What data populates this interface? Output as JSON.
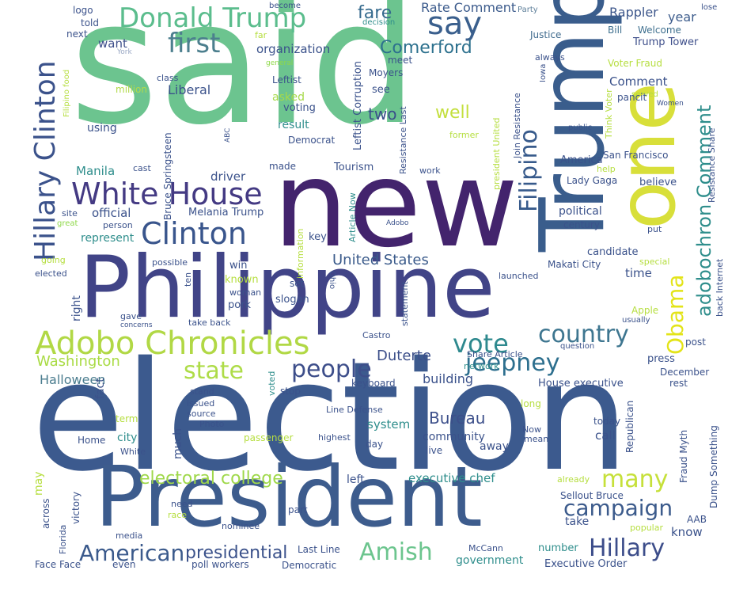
{
  "words": [
    {
      "id": "said",
      "text": "said",
      "color": "#6cc48f"
    },
    {
      "id": "election",
      "text": "election",
      "color": "#3c5a8e"
    },
    {
      "id": "new",
      "text": "new",
      "color": "#43246d"
    },
    {
      "id": "philippine",
      "text": "Philippine",
      "color": "#414487"
    },
    {
      "id": "president",
      "text": "President",
      "color": "#3d5c8d"
    },
    {
      "id": "trump",
      "text": "Trump",
      "color": "#3a5d8c"
    },
    {
      "id": "one",
      "text": "one",
      "color": "#d8df3a"
    },
    {
      "id": "donald-trump",
      "text": "Donald Trump",
      "color": "#5bbd8d"
    },
    {
      "id": "adobo-chronicles",
      "text": "Adobo Chronicles",
      "color": "#b1d845"
    },
    {
      "id": "white-house",
      "text": "White House",
      "color": "#443a83"
    },
    {
      "id": "clinton",
      "text": "Clinton",
      "color": "#39558c"
    },
    {
      "id": "hillary-clinton",
      "text": "Hillary Clinton",
      "color": "#3b528b"
    },
    {
      "id": "first",
      "text": "first",
      "color": "#4c7f8e"
    },
    {
      "id": "say",
      "text": "say",
      "color": "#3a5f8d"
    },
    {
      "id": "vote",
      "text": "vote",
      "color": "#2e898e"
    },
    {
      "id": "people",
      "text": "people",
      "color": "#3d4e8a"
    },
    {
      "id": "state",
      "text": "state",
      "color": "#aedc48"
    },
    {
      "id": "jeepney",
      "text": "jeepney",
      "color": "#2d6f8e"
    },
    {
      "id": "country",
      "text": "country",
      "color": "#3e7690"
    },
    {
      "id": "amish",
      "text": "Amish",
      "color": "#6cc58e"
    },
    {
      "id": "american",
      "text": "American",
      "color": "#3b5a8c"
    },
    {
      "id": "hillary",
      "text": "Hillary",
      "color": "#3c4d8a"
    },
    {
      "id": "many",
      "text": "many",
      "color": "#c6e03a"
    },
    {
      "id": "campaign",
      "text": "campaign",
      "color": "#3c5b8c"
    },
    {
      "id": "obama",
      "text": "Obama",
      "color": "#e3e419"
    },
    {
      "id": "adobochron-comment",
      "text": "adobochron Comment",
      "color": "#2f8e8c"
    },
    {
      "id": "filipino",
      "text": "Filipino",
      "color": "#375a8b"
    },
    {
      "id": "electoral-college",
      "text": "electoral college",
      "color": "#9fd84a"
    },
    {
      "id": "presidential",
      "text": "presidential",
      "color": "#3b528b"
    },
    {
      "id": "comerford",
      "text": "Comerford",
      "color": "#2d718e"
    },
    {
      "id": "fare",
      "text": "fare",
      "color": "#356a8d"
    },
    {
      "id": "rate-comment",
      "text": "Rate Comment",
      "color": "#3c5b8c"
    },
    {
      "id": "united-states",
      "text": "United States",
      "color": "#3b5b8b"
    },
    {
      "id": "duterte",
      "text": "Duterte",
      "color": "#3c4f8a"
    },
    {
      "id": "bureau",
      "text": "Bureau",
      "color": "#3c4f8a"
    },
    {
      "id": "washington",
      "text": "Washington",
      "color": "#a9db44"
    },
    {
      "id": "halloween",
      "text": "Halloween",
      "color": "#4a7c8e"
    },
    {
      "id": "well",
      "text": "well",
      "color": "#c3df3d"
    },
    {
      "id": "two",
      "text": "two",
      "color": "#3a4f8a"
    },
    {
      "id": "rappler",
      "text": "Rappler",
      "color": "#3c568b"
    },
    {
      "id": "year",
      "text": "year",
      "color": "#3d5c8c"
    },
    {
      "id": "trump-tower",
      "text": "Trump Tower",
      "color": "#3d4e8a"
    },
    {
      "id": "welcome",
      "text": "Welcome",
      "color": "#3e6f8e"
    },
    {
      "id": "bill",
      "text": "Bill",
      "color": "#3e6f8e"
    },
    {
      "id": "justice",
      "text": "Justice",
      "color": "#3f6a8d"
    },
    {
      "id": "organization",
      "text": "organization",
      "color": "#3b528b"
    },
    {
      "id": "want",
      "text": "want",
      "color": "#3d4e8a"
    },
    {
      "id": "logo",
      "text": "logo",
      "color": "#3b528b"
    },
    {
      "id": "told",
      "text": "told",
      "color": "#3b528b"
    },
    {
      "id": "next",
      "text": "next",
      "color": "#3b528b"
    },
    {
      "id": "become",
      "text": "become",
      "color": "#3b528b"
    },
    {
      "id": "lose",
      "text": "lose",
      "color": "#3b528b"
    },
    {
      "id": "decision",
      "text": "decision",
      "color": "#2f8e8c"
    },
    {
      "id": "party",
      "text": "Party",
      "color": "#5e7f9a"
    },
    {
      "id": "far",
      "text": "far",
      "color": "#b6de40"
    },
    {
      "id": "york",
      "text": "York",
      "color": "#9aa8c4"
    },
    {
      "id": "meet",
      "text": "meet",
      "color": "#3b528b"
    },
    {
      "id": "general",
      "text": "general",
      "color": "#8fd84a"
    },
    {
      "id": "moyers",
      "text": "Moyers",
      "color": "#3b528b"
    },
    {
      "id": "leftist",
      "text": "Leftist",
      "color": "#3b528b"
    },
    {
      "id": "class",
      "text": "class",
      "color": "#3b528b"
    },
    {
      "id": "million",
      "text": "million",
      "color": "#b1da4a"
    },
    {
      "id": "liberal",
      "text": "Liberal",
      "color": "#3b528b"
    },
    {
      "id": "asked",
      "text": "asked",
      "color": "#a6d94a"
    },
    {
      "id": "voting",
      "text": "voting",
      "color": "#3b528b"
    },
    {
      "id": "see",
      "text": "see",
      "color": "#3b528b"
    },
    {
      "id": "result",
      "text": "result",
      "color": "#2f8e8c"
    },
    {
      "id": "democrat",
      "text": "Democrat",
      "color": "#3b528b"
    },
    {
      "id": "using",
      "text": "using",
      "color": "#3b528b"
    },
    {
      "id": "tourism",
      "text": "Tourism",
      "color": "#3b528b"
    },
    {
      "id": "made",
      "text": "made",
      "color": "#3b528b"
    },
    {
      "id": "manila",
      "text": "Manila",
      "color": "#2f8e8c"
    },
    {
      "id": "cast",
      "text": "cast",
      "color": "#3b528b"
    },
    {
      "id": "driver",
      "text": "driver",
      "color": "#3b528b"
    },
    {
      "id": "work",
      "text": "work",
      "color": "#3b528b"
    },
    {
      "id": "official",
      "text": "official",
      "color": "#3b528b"
    },
    {
      "id": "melania-trump",
      "text": "Melania Trump",
      "color": "#3b528b"
    },
    {
      "id": "site",
      "text": "site",
      "color": "#3b528b"
    },
    {
      "id": "person",
      "text": "person",
      "color": "#3b528b"
    },
    {
      "id": "great",
      "text": "great",
      "color": "#8fd84a"
    },
    {
      "id": "represent",
      "text": "represent",
      "color": "#2f8e8c"
    },
    {
      "id": "adobo",
      "text": "Adobo",
      "color": "#3b528b"
    },
    {
      "id": "key",
      "text": "key",
      "color": "#3b528b"
    },
    {
      "id": "former",
      "text": "former",
      "color": "#b6de40"
    },
    {
      "id": "america",
      "text": "America",
      "color": "#3b528b"
    },
    {
      "id": "san-francisco",
      "text": "San Francisco",
      "color": "#3b528b"
    },
    {
      "id": "lady-gaga",
      "text": "Lady Gaga",
      "color": "#3b528b"
    },
    {
      "id": "help",
      "text": "help",
      "color": "#b6de40"
    },
    {
      "id": "believe",
      "text": "believe",
      "color": "#3b528b"
    },
    {
      "id": "political",
      "text": "political",
      "color": "#3b528b"
    },
    {
      "id": "century",
      "text": "century",
      "color": "#3b528b"
    },
    {
      "id": "put",
      "text": "put",
      "color": "#3b528b"
    },
    {
      "id": "candidate",
      "text": "candidate",
      "color": "#3b528b"
    },
    {
      "id": "makati-city",
      "text": "Makati City",
      "color": "#3b528b"
    },
    {
      "id": "launched",
      "text": "launched",
      "color": "#3b528b"
    },
    {
      "id": "special",
      "text": "special",
      "color": "#b6de40"
    },
    {
      "id": "time",
      "text": "time",
      "color": "#3b528b"
    },
    {
      "id": "comment",
      "text": "Comment",
      "color": "#3b528b"
    },
    {
      "id": "voter-fraud",
      "text": "Voter Fraud",
      "color": "#b6de40"
    },
    {
      "id": "always",
      "text": "always",
      "color": "#3b528b"
    },
    {
      "id": "served",
      "text": "served",
      "color": "#b6de40"
    },
    {
      "id": "pancit",
      "text": "pancit",
      "color": "#3b528b"
    },
    {
      "id": "women",
      "text": "Women",
      "color": "#3b528b"
    },
    {
      "id": "public",
      "text": "public",
      "color": "#3b528b"
    },
    {
      "id": "going",
      "text": "going",
      "color": "#b6de40"
    },
    {
      "id": "elected",
      "text": "elected",
      "color": "#3b528b"
    },
    {
      "id": "possible",
      "text": "possible",
      "color": "#3b528b"
    },
    {
      "id": "win",
      "text": "win",
      "color": "#3b528b"
    },
    {
      "id": "known",
      "text": "known",
      "color": "#b6de40"
    },
    {
      "id": "woman",
      "text": "woman",
      "color": "#3b528b"
    },
    {
      "id": "pork",
      "text": "pork",
      "color": "#3b528b"
    },
    {
      "id": "slogan",
      "text": "slogan",
      "color": "#3b528b"
    },
    {
      "id": "set",
      "text": "set",
      "color": "#3b528b"
    },
    {
      "id": "take-back",
      "text": "take back",
      "color": "#3b528b"
    },
    {
      "id": "gave",
      "text": "gave",
      "color": "#3b528b"
    },
    {
      "id": "concerns",
      "text": "concerns",
      "color": "#3b528b"
    },
    {
      "id": "castro",
      "text": "Castro",
      "color": "#3b528b"
    },
    {
      "id": "share-article",
      "text": "Share Article",
      "color": "#3b528b"
    },
    {
      "id": "question",
      "text": "question",
      "color": "#3b528b"
    },
    {
      "id": "apple",
      "text": "Apple",
      "color": "#b6de40"
    },
    {
      "id": "usually",
      "text": "usually",
      "color": "#3b528b"
    },
    {
      "id": "post",
      "text": "post",
      "color": "#3b528b"
    },
    {
      "id": "press",
      "text": "press",
      "color": "#3b528b"
    },
    {
      "id": "december",
      "text": "December",
      "color": "#3b528b"
    },
    {
      "id": "rest",
      "text": "rest",
      "color": "#3b528b"
    },
    {
      "id": "network",
      "text": "network",
      "color": "#2f8e8c"
    },
    {
      "id": "keyboard",
      "text": "keyboard",
      "color": "#3b528b"
    },
    {
      "id": "building",
      "text": "building",
      "color": "#3b528b"
    },
    {
      "id": "house-executive",
      "text": "House executive",
      "color": "#3b528b"
    },
    {
      "id": "stop",
      "text": "stop",
      "color": "#3b528b"
    },
    {
      "id": "stand",
      "text": "stand",
      "color": "#3b528b"
    },
    {
      "id": "issued",
      "text": "issued",
      "color": "#3b528b"
    },
    {
      "id": "source",
      "text": "source",
      "color": "#3b528b"
    },
    {
      "id": "photo",
      "text": "Photo",
      "color": "#3b528b"
    },
    {
      "id": "term",
      "text": "term",
      "color": "#b6de40"
    },
    {
      "id": "line-defense",
      "text": "Line Defense",
      "color": "#3b528b"
    },
    {
      "id": "long",
      "text": "long",
      "color": "#b6de40"
    },
    {
      "id": "today",
      "text": "today",
      "color": "#3b528b"
    },
    {
      "id": "system",
      "text": "system",
      "color": "#2f8e8c"
    },
    {
      "id": "community",
      "text": "community",
      "color": "#3b528b"
    },
    {
      "id": "away",
      "text": "away",
      "color": "#3b528b"
    },
    {
      "id": "call",
      "text": "call",
      "color": "#3b528b"
    },
    {
      "id": "now",
      "text": "Now",
      "color": "#3b528b"
    },
    {
      "id": "mean",
      "text": "mean",
      "color": "#3b528b"
    },
    {
      "id": "home",
      "text": "Home",
      "color": "#3b528b"
    },
    {
      "id": "city",
      "text": "city",
      "color": "#2f8e8c"
    },
    {
      "id": "white",
      "text": "White",
      "color": "#3b528b"
    },
    {
      "id": "passenger",
      "text": "passenger",
      "color": "#b6de40"
    },
    {
      "id": "highest",
      "text": "highest",
      "color": "#3b528b"
    },
    {
      "id": "day",
      "text": "day",
      "color": "#3b528b"
    },
    {
      "id": "live",
      "text": "live",
      "color": "#3b528b"
    },
    {
      "id": "left",
      "text": "left",
      "color": "#3b528b"
    },
    {
      "id": "executive-chef",
      "text": "executive chef",
      "color": "#2f8e8c"
    },
    {
      "id": "already",
      "text": "already",
      "color": "#b6de40"
    },
    {
      "id": "sellout-bruce",
      "text": "Sellout Bruce",
      "color": "#3b528b"
    },
    {
      "id": "need",
      "text": "need",
      "color": "#3b528b"
    },
    {
      "id": "race",
      "text": "race",
      "color": "#b6de40"
    },
    {
      "id": "nominee",
      "text": "nominee",
      "color": "#3b528b"
    },
    {
      "id": "part",
      "text": "part",
      "color": "#3b528b"
    },
    {
      "id": "take",
      "text": "take",
      "color": "#3b528b"
    },
    {
      "id": "popular",
      "text": "popular",
      "color": "#b6de40"
    },
    {
      "id": "know",
      "text": "know",
      "color": "#3b528b"
    },
    {
      "id": "aab",
      "text": "AAB",
      "color": "#3b528b"
    },
    {
      "id": "media",
      "text": "media",
      "color": "#3b528b"
    },
    {
      "id": "last-line",
      "text": "Last Line",
      "color": "#3b528b"
    },
    {
      "id": "mccann",
      "text": "McCann",
      "color": "#3b528b"
    },
    {
      "id": "number",
      "text": "number",
      "color": "#2f8e8c"
    },
    {
      "id": "government",
      "text": "government",
      "color": "#2f8e8c"
    },
    {
      "id": "executive-order",
      "text": "Executive Order",
      "color": "#3b528b"
    },
    {
      "id": "face-face",
      "text": "Face Face",
      "color": "#3b528b"
    },
    {
      "id": "even",
      "text": "even",
      "color": "#3b528b"
    },
    {
      "id": "poll-workers",
      "text": "poll workers",
      "color": "#3b528b"
    },
    {
      "id": "democratic",
      "text": "Democratic",
      "color": "#3b528b"
    },
    {
      "id": "filipino-food",
      "text": "Filipino food",
      "color": "#b6de40"
    },
    {
      "id": "bruce-springsteen",
      "text": "Bruce Springsteen",
      "color": "#3b528b"
    },
    {
      "id": "leftist-corruption",
      "text": "Leftist Corruption",
      "color": "#3b528b"
    },
    {
      "id": "resistance-last",
      "text": "Resistance Last",
      "color": "#3b528b"
    },
    {
      "id": "president-united",
      "text": "president United",
      "color": "#b6de40"
    },
    {
      "id": "join-resistance",
      "text": "Join Resistance",
      "color": "#3b528b"
    },
    {
      "id": "think-voter",
      "text": "Think Voter",
      "color": "#b6de40"
    },
    {
      "id": "resistance-share",
      "text": "Resistance Share",
      "color": "#3b528b"
    },
    {
      "id": "abc",
      "text": "ABC",
      "color": "#3b528b"
    },
    {
      "id": "ten",
      "text": "ten",
      "color": "#3b528b"
    },
    {
      "id": "information",
      "text": "information",
      "color": "#b6de40"
    },
    {
      "id": "article-now",
      "text": "Article Now",
      "color": "#2f8e8c"
    },
    {
      "id": "ohio",
      "text": "Ohio",
      "color": "#3b528b"
    },
    {
      "id": "statement",
      "text": "statement",
      "color": "#3b528b"
    },
    {
      "id": "voted",
      "text": "voted",
      "color": "#2f8e8c"
    },
    {
      "id": "right",
      "text": "right",
      "color": "#3b528b"
    },
    {
      "id": "fact",
      "text": "fact",
      "color": "#3b528b"
    },
    {
      "id": "much",
      "text": "much",
      "color": "#3b528b"
    },
    {
      "id": "may",
      "text": "may",
      "color": "#b6de40"
    },
    {
      "id": "across",
      "text": "across",
      "color": "#3b528b"
    },
    {
      "id": "victory",
      "text": "victory",
      "color": "#3b528b"
    },
    {
      "id": "florida",
      "text": "Florida",
      "color": "#3b528b"
    },
    {
      "id": "iowa",
      "text": "Iowa",
      "color": "#3b528b"
    },
    {
      "id": "back-internet",
      "text": "back Internet",
      "color": "#3b528b"
    },
    {
      "id": "republican",
      "text": "Republican",
      "color": "#3b528b"
    },
    {
      "id": "fraud-myth",
      "text": "Fraud Myth",
      "color": "#3b528b"
    },
    {
      "id": "dump-something",
      "text": "Dump Something",
      "color": "#3b528b"
    }
  ]
}
